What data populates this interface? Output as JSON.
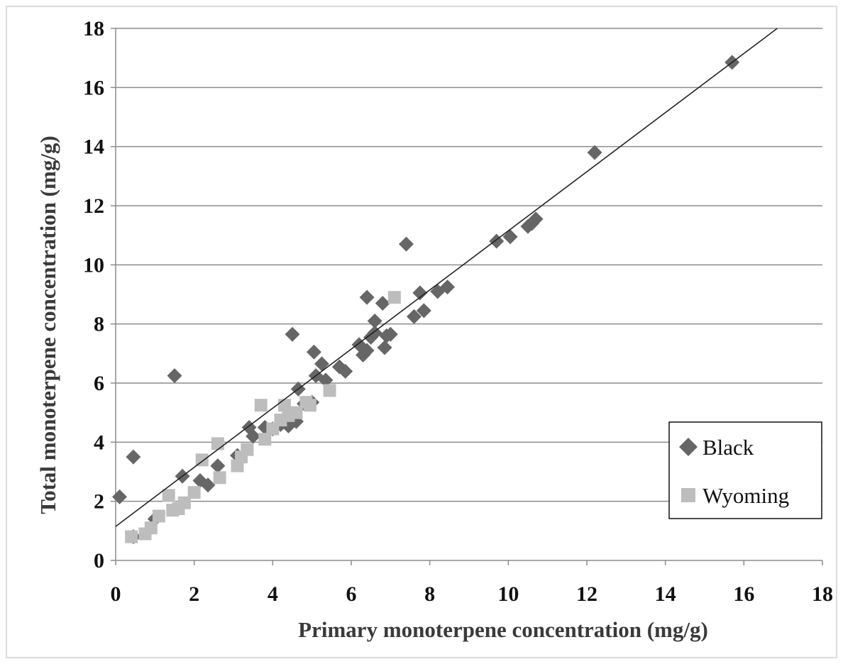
{
  "chart_data": {
    "type": "scatter",
    "xlabel": "Primary monoterpene concentration (mg/g)",
    "ylabel": "Total monoterpene concentration (mg/g)",
    "xlim": [
      0,
      18
    ],
    "ylim": [
      0,
      18
    ],
    "x_ticks": [
      "0",
      "2",
      "4",
      "6",
      "8",
      "10",
      "12",
      "14",
      "16",
      "18"
    ],
    "y_ticks": [
      "0",
      "2",
      "4",
      "6",
      "8",
      "10",
      "12",
      "14",
      "16",
      "18"
    ],
    "grid": "horizontal",
    "legend_position": "right",
    "trendline": {
      "intercept": 1.15,
      "slope": 1.0
    },
    "series": [
      {
        "name": "Black",
        "marker": "diamond",
        "color": "#666666",
        "points": [
          [
            0.1,
            2.15
          ],
          [
            0.45,
            3.5
          ],
          [
            0.45,
            0.8
          ],
          [
            1.0,
            1.4
          ],
          [
            1.5,
            6.25
          ],
          [
            1.7,
            2.85
          ],
          [
            2.15,
            2.7
          ],
          [
            2.35,
            2.55
          ],
          [
            2.6,
            3.2
          ],
          [
            3.1,
            3.55
          ],
          [
            3.4,
            4.5
          ],
          [
            3.5,
            4.2
          ],
          [
            3.8,
            4.5
          ],
          [
            4.0,
            4.45
          ],
          [
            4.2,
            4.6
          ],
          [
            4.4,
            4.55
          ],
          [
            4.5,
            7.65
          ],
          [
            4.6,
            4.7
          ],
          [
            4.65,
            5.8
          ],
          [
            4.8,
            5.3
          ],
          [
            5.0,
            5.35
          ],
          [
            5.05,
            7.05
          ],
          [
            5.1,
            6.25
          ],
          [
            5.25,
            6.65
          ],
          [
            5.35,
            6.1
          ],
          [
            5.7,
            6.55
          ],
          [
            5.85,
            6.4
          ],
          [
            6.2,
            7.3
          ],
          [
            6.3,
            6.95
          ],
          [
            6.4,
            7.1
          ],
          [
            6.4,
            8.9
          ],
          [
            6.5,
            7.55
          ],
          [
            6.6,
            7.7
          ],
          [
            6.6,
            8.1
          ],
          [
            6.8,
            8.7
          ],
          [
            6.85,
            7.2
          ],
          [
            6.9,
            7.6
          ],
          [
            7.0,
            7.65
          ],
          [
            7.4,
            10.7
          ],
          [
            7.6,
            8.25
          ],
          [
            7.75,
            9.05
          ],
          [
            7.85,
            8.45
          ],
          [
            8.2,
            9.1
          ],
          [
            8.45,
            9.25
          ],
          [
            9.7,
            10.8
          ],
          [
            10.05,
            10.95
          ],
          [
            10.5,
            11.3
          ],
          [
            10.6,
            11.4
          ],
          [
            10.7,
            11.55
          ],
          [
            12.2,
            13.8
          ],
          [
            15.7,
            16.85
          ]
        ]
      },
      {
        "name": "Wyoming",
        "marker": "square",
        "color": "#bdbdbd",
        "points": [
          [
            0.4,
            0.8
          ],
          [
            0.75,
            0.9
          ],
          [
            0.9,
            1.1
          ],
          [
            1.1,
            1.5
          ],
          [
            1.35,
            2.2
          ],
          [
            1.45,
            1.7
          ],
          [
            1.6,
            1.75
          ],
          [
            1.75,
            1.95
          ],
          [
            2.0,
            2.3
          ],
          [
            2.2,
            3.4
          ],
          [
            2.6,
            3.95
          ],
          [
            2.65,
            2.8
          ],
          [
            3.1,
            3.2
          ],
          [
            3.2,
            3.5
          ],
          [
            3.35,
            3.75
          ],
          [
            3.7,
            5.25
          ],
          [
            3.8,
            4.1
          ],
          [
            4.0,
            4.45
          ],
          [
            4.2,
            4.75
          ],
          [
            4.3,
            5.25
          ],
          [
            4.4,
            4.9
          ],
          [
            4.6,
            5.0
          ],
          [
            4.85,
            5.35
          ],
          [
            4.95,
            5.25
          ],
          [
            5.45,
            5.75
          ],
          [
            7.1,
            8.9
          ]
        ]
      }
    ]
  }
}
